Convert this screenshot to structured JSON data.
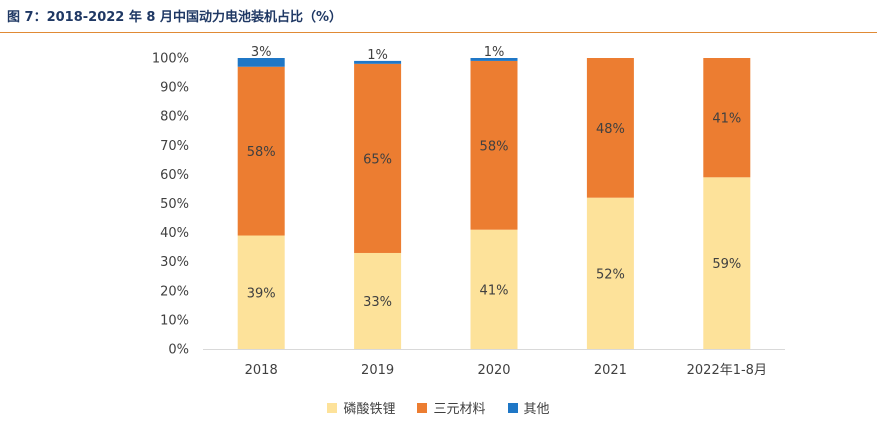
{
  "title": "图 7：2018-2022 年 8 月中国动力电池装机占比（%）",
  "colors": {
    "lfp": "#fde29a",
    "ternary": "#ec7d31",
    "other": "#1f77c6",
    "accent": "#e08a35",
    "title": "#1f3864"
  },
  "chart_data": {
    "type": "bar",
    "stacked": true,
    "categories": [
      "2018",
      "2019",
      "2020",
      "2021",
      "2022年1-8月"
    ],
    "series": [
      {
        "name": "磷酸铁锂",
        "values": [
          39,
          33,
          41,
          52,
          59
        ],
        "labels": [
          "39%",
          "33%",
          "41%",
          "52%",
          "59%"
        ],
        "color": "#fde29a"
      },
      {
        "name": "三元材料",
        "values": [
          58,
          65,
          58,
          48,
          41
        ],
        "labels": [
          "58%",
          "65%",
          "58%",
          "48%",
          "41%"
        ],
        "color": "#ec7d31"
      },
      {
        "name": "其他",
        "values": [
          3,
          1,
          1,
          0,
          0
        ],
        "labels": [
          "3%",
          "1%",
          "1%",
          "",
          ""
        ],
        "color": "#1f77c6"
      }
    ],
    "ylim": [
      0,
      100
    ],
    "yticks": [
      "0%",
      "10%",
      "20%",
      "30%",
      "40%",
      "50%",
      "60%",
      "70%",
      "80%",
      "90%",
      "100%"
    ],
    "grid": false,
    "legend_position": "bottom"
  }
}
